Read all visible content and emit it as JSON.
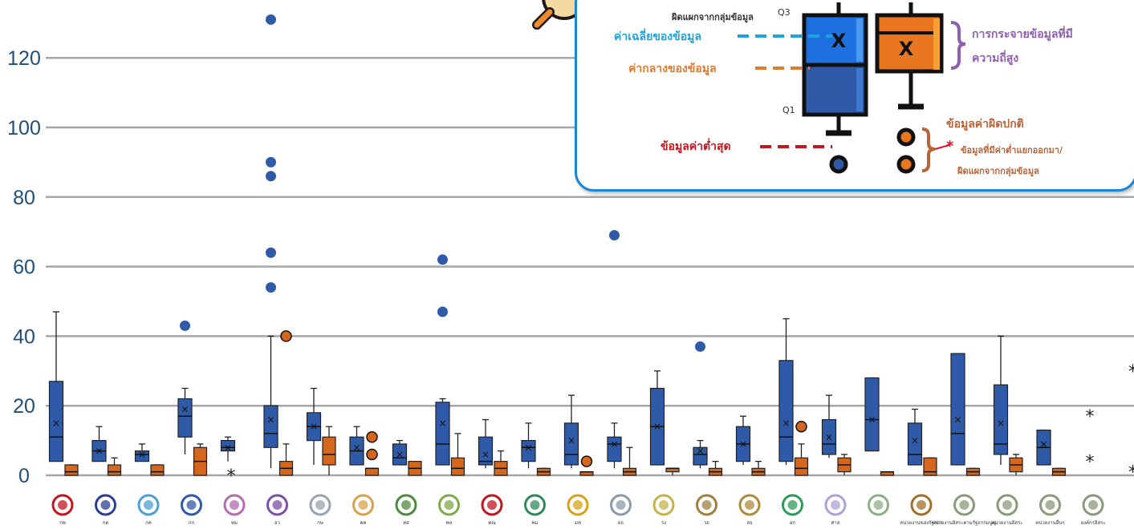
{
  "colors": {
    "blue_box": "#2f5aa8",
    "orange_box": "#d4661d",
    "grid": "#a6a6a6",
    "axis_text": "#1f4e79",
    "legend_border": "#1b86d6"
  },
  "chart_data": {
    "type": "boxplot",
    "ylim": [
      0,
      140
    ],
    "yticks": [
      0,
      20,
      40,
      60,
      80,
      100,
      120
    ],
    "grid": true,
    "categories": [
      "กพ",
      "กต",
      "กค",
      "กก",
      "พม",
      "อว",
      "กษ",
      "คค",
      "ทส",
      "พล",
      "พณ",
      "พม",
      "มท",
      "ยธ",
      "รง",
      "วธ",
      "สธ",
      "อก",
      "ศาล",
      "",
      "หน่วยงานของรัฐสภา",
      "หน่วยงานอิสระตามรัฐธรรมนูญ",
      "หน่วยงานอิสระ",
      "หน่วยงานอื่นๆ",
      "องค์กรอิสระ"
    ],
    "blue_boxes": [
      {
        "cat": 0,
        "min": 4,
        "q1": 4,
        "median": 11,
        "q3": 27,
        "max": 47,
        "mean": 15,
        "outliers": []
      },
      {
        "cat": 1,
        "min": 4,
        "q1": 4,
        "median": 7,
        "q3": 10,
        "max": 14,
        "mean": 7,
        "outliers": []
      },
      {
        "cat": 2,
        "min": 4,
        "q1": 4,
        "median": 6,
        "q3": 7,
        "max": 9,
        "mean": 6,
        "outliers": []
      },
      {
        "cat": 3,
        "min": 6,
        "q1": 11,
        "median": 17,
        "q3": 22,
        "max": 25,
        "mean": 19,
        "outliers": [
          43
        ]
      },
      {
        "cat": 4,
        "min": 4,
        "q1": 7,
        "median": 8,
        "q3": 10,
        "max": 11,
        "mean": 8,
        "outliers": []
      },
      {
        "cat": 5,
        "min": 2,
        "q1": 8,
        "median": 12,
        "q3": 20,
        "max": 40,
        "mean": 16,
        "outliers": [
          54,
          64,
          86,
          90,
          131
        ]
      },
      {
        "cat": 6,
        "min": 3,
        "q1": 10,
        "median": 14,
        "q3": 18,
        "max": 25,
        "mean": 14,
        "outliers": []
      },
      {
        "cat": 7,
        "min": 3,
        "q1": 3,
        "median": 7,
        "q3": 11,
        "max": 14,
        "mean": 8,
        "outliers": []
      },
      {
        "cat": 8,
        "min": 3,
        "q1": 3,
        "median": 5,
        "q3": 9,
        "max": 10,
        "mean": 6,
        "outliers": []
      },
      {
        "cat": 9,
        "min": 3,
        "q1": 3,
        "median": 9,
        "q3": 21,
        "max": 22,
        "mean": 15,
        "outliers": [
          47,
          62
        ]
      },
      {
        "cat": 10,
        "min": 2,
        "q1": 3,
        "median": 4,
        "q3": 11,
        "max": 16,
        "mean": 6,
        "outliers": []
      },
      {
        "cat": 11,
        "min": 2,
        "q1": 4,
        "median": 8,
        "q3": 10,
        "max": 15,
        "mean": 8,
        "outliers": []
      },
      {
        "cat": 12,
        "min": 2,
        "q1": 3,
        "median": 6,
        "q3": 15,
        "max": 23,
        "mean": 10,
        "outliers": []
      },
      {
        "cat": 13,
        "min": 2,
        "q1": 4,
        "median": 9,
        "q3": 11,
        "max": 15,
        "mean": 9,
        "outliers": [
          69
        ]
      },
      {
        "cat": 14,
        "min": 3,
        "q1": 3,
        "median": 14,
        "q3": 25,
        "max": 30,
        "mean": 14,
        "outliers": []
      },
      {
        "cat": 15,
        "min": 2,
        "q1": 3,
        "median": 6,
        "q3": 8,
        "max": 10,
        "mean": 7,
        "outliers": [
          37
        ]
      },
      {
        "cat": 16,
        "min": 3,
        "q1": 4,
        "median": 9,
        "q3": 14,
        "max": 17,
        "mean": 9,
        "outliers": []
      },
      {
        "cat": 17,
        "min": 3,
        "q1": 4,
        "median": 11,
        "q3": 33,
        "max": 45,
        "mean": 15,
        "outliers": []
      },
      {
        "cat": 18,
        "min": 5,
        "q1": 6,
        "median": 9,
        "q3": 16,
        "max": 23,
        "mean": 11,
        "outliers": []
      },
      {
        "cat": 19,
        "min": 7,
        "q1": 7,
        "median": 16,
        "q3": 28,
        "max": 28,
        "mean": 16,
        "outliers": []
      },
      {
        "cat": 20,
        "min": 3,
        "q1": 3,
        "median": 6,
        "q3": 15,
        "max": 19,
        "mean": 10,
        "outliers": []
      },
      {
        "cat": 21,
        "min": 3,
        "q1": 3,
        "median": 12,
        "q3": 35,
        "max": 35,
        "mean": 16,
        "outliers": []
      },
      {
        "cat": 22,
        "min": 3,
        "q1": 6,
        "median": 9,
        "q3": 26,
        "max": 40,
        "mean": 15,
        "outliers": []
      },
      {
        "cat": 23,
        "min": 3,
        "q1": 3,
        "median": 8,
        "q3": 13,
        "max": 13,
        "mean": 9,
        "outliers": []
      }
    ],
    "orange_boxes": [
      {
        "cat": 0,
        "min": 0,
        "q1": 0,
        "median": 1,
        "q3": 3,
        "max": 3,
        "outliers": []
      },
      {
        "cat": 1,
        "min": 0,
        "q1": 0,
        "median": 1,
        "q3": 3,
        "max": 5,
        "outliers": []
      },
      {
        "cat": 2,
        "min": 0,
        "q1": 0,
        "median": 1,
        "q3": 3,
        "max": 3,
        "outliers": []
      },
      {
        "cat": 3,
        "min": 0,
        "q1": 0,
        "median": 4,
        "q3": 8,
        "max": 9,
        "outliers": []
      },
      {
        "cat": 5,
        "min": 0,
        "q1": 0,
        "median": 2,
        "q3": 4,
        "max": 9,
        "outliers": [
          40
        ]
      },
      {
        "cat": 6,
        "min": 0,
        "q1": 3,
        "median": 6,
        "q3": 11,
        "max": 14,
        "outliers": []
      },
      {
        "cat": 7,
        "min": 0,
        "q1": 0,
        "median": 2,
        "q3": 2,
        "max": 2,
        "outliers": [
          6,
          11
        ]
      },
      {
        "cat": 8,
        "min": 0,
        "q1": 0,
        "median": 2,
        "q3": 4,
        "max": 4,
        "outliers": []
      },
      {
        "cat": 9,
        "min": 0,
        "q1": 0,
        "median": 2,
        "q3": 5,
        "max": 12,
        "outliers": []
      },
      {
        "cat": 10,
        "min": 0,
        "q1": 0,
        "median": 2,
        "q3": 4,
        "max": 7,
        "outliers": []
      },
      {
        "cat": 11,
        "min": 0,
        "q1": 0,
        "median": 1,
        "q3": 2,
        "max": 2,
        "outliers": []
      },
      {
        "cat": 12,
        "min": 0,
        "q1": 0,
        "median": 1,
        "q3": 1,
        "max": 1,
        "outliers": [
          4
        ]
      },
      {
        "cat": 13,
        "min": 0,
        "q1": 0,
        "median": 1,
        "q3": 2,
        "max": 8,
        "outliers": []
      },
      {
        "cat": 14,
        "min": 0,
        "q1": 1,
        "median": 2,
        "q3": 2,
        "max": 2,
        "outliers": []
      },
      {
        "cat": 15,
        "min": 0,
        "q1": 0,
        "median": 1,
        "q3": 2,
        "max": 4,
        "outliers": []
      },
      {
        "cat": 16,
        "min": 0,
        "q1": 0,
        "median": 1,
        "q3": 2,
        "max": 4,
        "outliers": []
      },
      {
        "cat": 17,
        "min": 0,
        "q1": 0,
        "median": 2,
        "q3": 5,
        "max": 9,
        "outliers": [
          14
        ]
      },
      {
        "cat": 18,
        "min": 0,
        "q1": 1,
        "median": 3,
        "q3": 5,
        "max": 6,
        "outliers": []
      },
      {
        "cat": 19,
        "min": 0,
        "q1": 0,
        "median": 1,
        "q3": 1,
        "max": 1,
        "outliers": []
      },
      {
        "cat": 20,
        "min": 0,
        "q1": 0,
        "median": 1,
        "q3": 5,
        "max": 5,
        "outliers": []
      },
      {
        "cat": 21,
        "min": 0,
        "q1": 0,
        "median": 1,
        "q3": 2,
        "max": 2,
        "outliers": []
      },
      {
        "cat": 22,
        "min": 0,
        "q1": 1,
        "median": 3,
        "q3": 5,
        "max": 6,
        "outliers": []
      },
      {
        "cat": 23,
        "min": 0,
        "q1": 0,
        "median": 1,
        "q3": 2,
        "max": 2,
        "outliers": []
      }
    ],
    "star_markers": [
      {
        "cat": 4,
        "value": 0
      },
      {
        "cat": 24,
        "value": 17
      },
      {
        "cat": 24,
        "value": 4
      },
      {
        "cat": 25,
        "value": 30
      },
      {
        "cat": 25,
        "value": 1
      }
    ]
  },
  "legend": {
    "top_note": "ผิดแผกจากกลุ่มข้อมูล",
    "q3": "Q3",
    "q1": "Q1",
    "mean": "ค่าเฉลี่ยของข้อมูล",
    "median": "ค่ากลางของข้อมูล",
    "min": "ข้อมูลค่าต่ำสุด",
    "spread_line1": "การกระจายข้อมูลที่มี",
    "spread_line2": "ความถี่สูง",
    "outlier_title": "ข้อมูลค่าผิดปกติ",
    "outlier_line1": "ข้อมูลที่มีค่าต่ำแยกออกมา/",
    "outlier_line2": "ผิดแผกจากกลุ่มข้อมูล",
    "mean_mark": "X"
  }
}
